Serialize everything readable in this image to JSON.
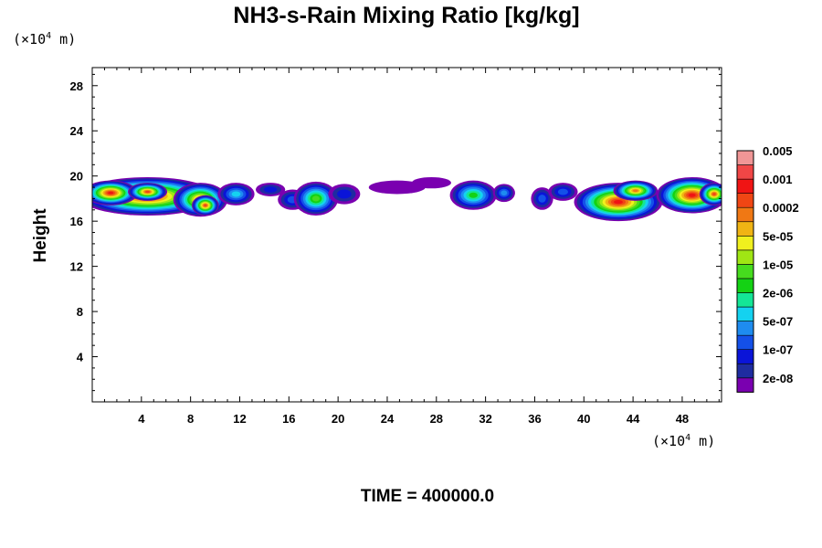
{
  "chart_data": {
    "type": "heatmap",
    "title": "NH3-s-Rain Mixing Ratio [kg/kg]",
    "ylabel": "Height",
    "x_unit": {
      "prefix": "(×10",
      "exp": "4",
      "suffix": " m)"
    },
    "y_unit": {
      "prefix": "(×10",
      "exp": "4",
      "suffix": " m)"
    },
    "xlim": [
      0,
      51.2
    ],
    "ylim": [
      0,
      29.6
    ],
    "x_ticks": [
      4,
      8,
      12,
      16,
      20,
      24,
      28,
      32,
      36,
      40,
      44,
      48
    ],
    "y_ticks": [
      4,
      8,
      12,
      16,
      20,
      24,
      28
    ],
    "colorbar": {
      "colors": [
        "#7a00b0",
        "#1e2ca0",
        "#0a14d8",
        "#1450e8",
        "#1e8cf0",
        "#14d2f0",
        "#14e696",
        "#14d214",
        "#46dc1e",
        "#a0e614",
        "#f0f01e",
        "#f0b414",
        "#f07814",
        "#f04614",
        "#f01414",
        "#f04646",
        "#f09696"
      ],
      "labels": [
        "2e-08",
        "1e-07",
        "5e-07",
        "2e-06",
        "1e-05",
        "5e-05",
        "0.0002",
        "0.001",
        "0.005"
      ]
    },
    "cloud_blobs": [
      {
        "x": 4.5,
        "y": 18.2,
        "rx": 5.6,
        "ry": 1.7,
        "peak": 14
      },
      {
        "x": 1.5,
        "y": 18.5,
        "rx": 2.2,
        "ry": 1.1,
        "peak": 14
      },
      {
        "x": 4.5,
        "y": 18.6,
        "rx": 1.6,
        "ry": 0.8,
        "peak": 13
      },
      {
        "x": 8.8,
        "y": 17.9,
        "rx": 2.2,
        "ry": 1.5,
        "peak": 12
      },
      {
        "x": 9.2,
        "y": 17.4,
        "rx": 1.1,
        "ry": 0.9,
        "peak": 13
      },
      {
        "x": 11.7,
        "y": 18.4,
        "rx": 1.5,
        "ry": 1.0,
        "peak": 5
      },
      {
        "x": 14.5,
        "y": 18.8,
        "rx": 1.2,
        "ry": 0.6,
        "peak": 2
      },
      {
        "x": 16.3,
        "y": 17.9,
        "rx": 1.2,
        "ry": 0.9,
        "peak": 3
      },
      {
        "x": 18.2,
        "y": 18.0,
        "rx": 1.8,
        "ry": 1.5,
        "peak": 8
      },
      {
        "x": 20.5,
        "y": 18.4,
        "rx": 1.3,
        "ry": 0.9,
        "peak": 2
      },
      {
        "x": 24.8,
        "y": 19.0,
        "rx": 2.3,
        "ry": 0.6,
        "peak": 0
      },
      {
        "x": 27.6,
        "y": 19.4,
        "rx": 1.6,
        "ry": 0.5,
        "peak": 0
      },
      {
        "x": 31.0,
        "y": 18.3,
        "rx": 1.9,
        "ry": 1.3,
        "peak": 7
      },
      {
        "x": 33.5,
        "y": 18.5,
        "rx": 0.9,
        "ry": 0.8,
        "peak": 4
      },
      {
        "x": 36.6,
        "y": 18.0,
        "rx": 0.9,
        "ry": 1.0,
        "peak": 3
      },
      {
        "x": 38.3,
        "y": 18.6,
        "rx": 1.2,
        "ry": 0.8,
        "peak": 3
      },
      {
        "x": 42.8,
        "y": 17.7,
        "rx": 3.6,
        "ry": 1.7,
        "peak": 14
      },
      {
        "x": 44.2,
        "y": 18.7,
        "rx": 1.8,
        "ry": 0.9,
        "peak": 12
      },
      {
        "x": 48.8,
        "y": 18.3,
        "rx": 2.9,
        "ry": 1.6,
        "peak": 14
      },
      {
        "x": 50.6,
        "y": 18.4,
        "rx": 1.2,
        "ry": 1.0,
        "peak": 13
      }
    ]
  },
  "footer": {
    "time_label": "TIME = 400000.0"
  }
}
